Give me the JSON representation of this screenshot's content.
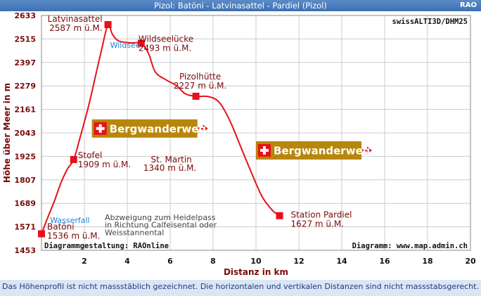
{
  "header": {
    "title": "Pizol: Batöni - Latvinasattel - Pardiel (Pizol)",
    "tag": "RAO"
  },
  "source_label": "swissALTI3D/DHM25",
  "credit_left": "Diagrammgestaltung: RAOnline",
  "credit_right": "Diagramm: www.map.admin.ch",
  "footer_text": "Das Höhenprofil ist nicht massstäblich gezeichnet. Die horizontalen und vertikalen Distanzen sind nicht massstabsgerecht.",
  "colors": {
    "profile_line": "#e8101a",
    "marker": "#e8101a",
    "label_text": "#7a0a0a",
    "sign_bg": "#b8860b",
    "sign_arrow": "#e8101a",
    "blue_text": "#1f7fd8",
    "footer_bg": "#dbe6f5"
  },
  "chart_data": {
    "type": "line",
    "xlabel": "Distanz in km",
    "ylabel": "Höhe über Meer in m",
    "xlim": [
      0,
      20
    ],
    "ylim": [
      1453,
      2633
    ],
    "xticks": [
      "2",
      "4",
      "6",
      "8",
      "10",
      "12",
      "14",
      "16",
      "18",
      "20"
    ],
    "yticks": [
      "2633",
      "2515",
      "2397",
      "2279",
      "2161",
      "2043",
      "1925",
      "1807",
      "1689",
      "1571",
      "1453"
    ],
    "profile": [
      [
        0.0,
        1536
      ],
      [
        0.3,
        1620
      ],
      [
        0.6,
        1700
      ],
      [
        0.9,
        1790
      ],
      [
        1.2,
        1860
      ],
      [
        1.5,
        1909
      ],
      [
        1.8,
        2020
      ],
      [
        2.2,
        2180
      ],
      [
        2.5,
        2320
      ],
      [
        2.8,
        2460
      ],
      [
        3.1,
        2587
      ],
      [
        3.3,
        2540
      ],
      [
        3.6,
        2505
      ],
      [
        4.2,
        2495
      ],
      [
        4.65,
        2493
      ],
      [
        5.0,
        2440
      ],
      [
        5.3,
        2350
      ],
      [
        5.8,
        2310
      ],
      [
        6.3,
        2280
      ],
      [
        6.7,
        2240
      ],
      [
        7.2,
        2227
      ],
      [
        7.8,
        2225
      ],
      [
        8.3,
        2195
      ],
      [
        8.8,
        2100
      ],
      [
        9.3,
        1970
      ],
      [
        9.8,
        1840
      ],
      [
        10.3,
        1720
      ],
      [
        10.8,
        1650
      ],
      [
        11.1,
        1627
      ]
    ],
    "points": [
      {
        "name": "Batöni",
        "elevation_label": "1536 m ü.M.",
        "x": 0.0,
        "y": 1536,
        "label_pos": "right"
      },
      {
        "name": "Stofel",
        "elevation_label": "1909 m ü.M.",
        "x": 1.5,
        "y": 1909,
        "label_pos": "right"
      },
      {
        "name": "Latvinasattel",
        "elevation_label": "2587 m ü.M.",
        "x": 3.1,
        "y": 2587,
        "label_pos": "left"
      },
      {
        "name": "Wildseelücke",
        "elevation_label": "2493 m ü.M.",
        "x": 4.65,
        "y": 2493,
        "label_pos": "right"
      },
      {
        "name": "Pizolhütte",
        "elevation_label": "2227 m ü.M.",
        "x": 7.2,
        "y": 2227,
        "label_pos": "above"
      },
      {
        "name": "Station Pardiel",
        "elevation_label": "1627 m ü.M.",
        "x": 11.1,
        "y": 1627,
        "label_pos": "right"
      }
    ],
    "annotations": [
      {
        "text": "Wildsee",
        "style": "blue",
        "x": 3.2,
        "y": 2470
      },
      {
        "text": "Wasserfall",
        "style": "blue",
        "x": 0.4,
        "y": 1590
      },
      {
        "text": "St. Martin",
        "style": "red",
        "x": 5.1,
        "y": 1895
      },
      {
        "text": "1340 m ü.M.",
        "style": "red",
        "x": 4.75,
        "y": 1853
      },
      {
        "text": "Abzweigung zum Heidelpass",
        "style": "note",
        "x": 2.95,
        "y": 1605
      },
      {
        "text": "in Richtung Calfeisental oder",
        "style": "note",
        "x": 2.95,
        "y": 1567
      },
      {
        "text": "Weisstannental",
        "style": "note",
        "x": 2.95,
        "y": 1529
      }
    ],
    "signs": [
      {
        "text": "Bergwanderweg",
        "x": 2.35,
        "y": 2065
      },
      {
        "text": "Bergwanderweg",
        "x": 10.0,
        "y": 1955
      }
    ]
  }
}
